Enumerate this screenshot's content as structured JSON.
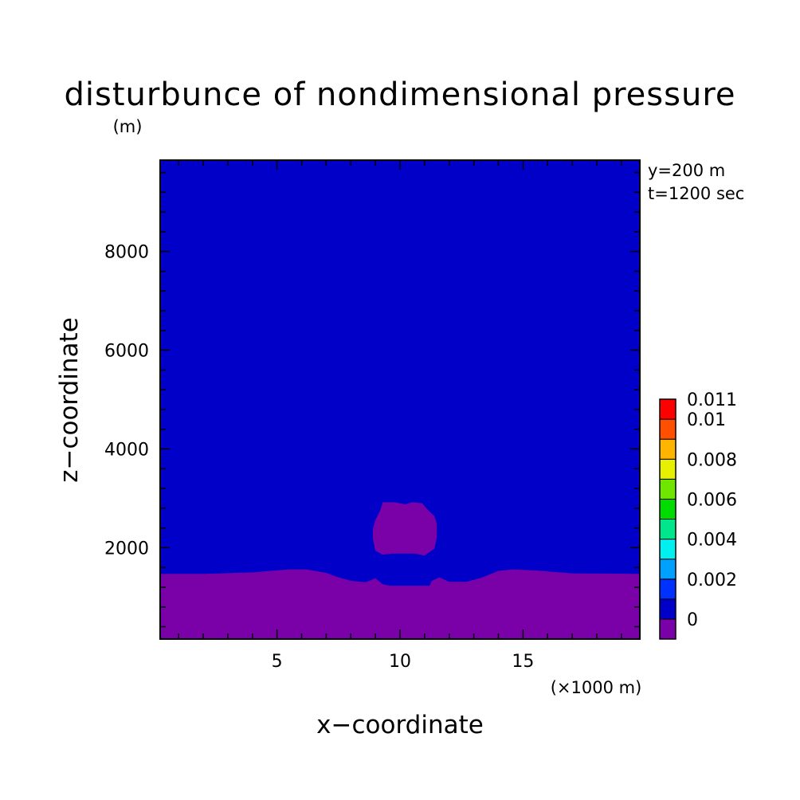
{
  "chart_data": {
    "type": "heatmap",
    "title": "disturbunce of nondimensional pressure",
    "y_unit": "(m)",
    "x_unit": "(×1000 m)",
    "xlabel": "x−coordinate",
    "ylabel": "z−coordinate",
    "annotations": [
      "y=200 m",
      "t=1200 sec"
    ],
    "xlim": [
      0.25,
      19.75
    ],
    "ylim": [
      150,
      9850
    ],
    "x_ticks": [
      5,
      10,
      15
    ],
    "y_ticks": [
      2000,
      4000,
      6000,
      8000
    ],
    "background_level_color": "#0000c8",
    "colorbar": {
      "levels": [
        {
          "lower": -0.001,
          "upper": 0.0,
          "color": "#7a00a8"
        },
        {
          "lower": 0.0,
          "upper": 0.001,
          "color": "#0000c8"
        },
        {
          "lower": 0.001,
          "upper": 0.002,
          "color": "#0032ff"
        },
        {
          "lower": 0.002,
          "upper": 0.003,
          "color": "#00a0ff"
        },
        {
          "lower": 0.003,
          "upper": 0.004,
          "color": "#00f0f0"
        },
        {
          "lower": 0.004,
          "upper": 0.005,
          "color": "#00e68c"
        },
        {
          "lower": 0.005,
          "upper": 0.006,
          "color": "#00dc00"
        },
        {
          "lower": 0.006,
          "upper": 0.007,
          "color": "#6ee600"
        },
        {
          "lower": 0.007,
          "upper": 0.008,
          "color": "#e6f000"
        },
        {
          "lower": 0.008,
          "upper": 0.009,
          "color": "#ffb400"
        },
        {
          "lower": 0.009,
          "upper": 0.01,
          "color": "#ff5000"
        },
        {
          "lower": 0.01,
          "upper": 0.011,
          "color": "#ff0000"
        }
      ],
      "labels": [
        {
          "value": 0.011,
          "text": "0.011"
        },
        {
          "value": 0.01,
          "text": "0.01"
        },
        {
          "value": 0.008,
          "text": "0.008"
        },
        {
          "value": 0.006,
          "text": "0.006"
        },
        {
          "value": 0.004,
          "text": "0.004"
        },
        {
          "value": 0.002,
          "text": "0.002"
        },
        {
          "value": 0.0,
          "text": "0"
        }
      ]
    },
    "regions": [
      {
        "name": "negative-disturbance-lower-layer",
        "color": "#7a00a8",
        "polygon": [
          [
            0.25,
            150
          ],
          [
            0.25,
            1470
          ],
          [
            2.0,
            1470
          ],
          [
            4.0,
            1500
          ],
          [
            5.5,
            1560
          ],
          [
            6.2,
            1560
          ],
          [
            7.0,
            1490
          ],
          [
            7.5,
            1400
          ],
          [
            8.0,
            1330
          ],
          [
            8.6,
            1300
          ],
          [
            9.0,
            1380
          ],
          [
            9.3,
            1260
          ],
          [
            9.6,
            1230
          ],
          [
            10.5,
            1230
          ],
          [
            11.2,
            1230
          ],
          [
            11.3,
            1330
          ],
          [
            11.6,
            1400
          ],
          [
            12.0,
            1310
          ],
          [
            12.7,
            1310
          ],
          [
            13.3,
            1390
          ],
          [
            14.0,
            1530
          ],
          [
            14.6,
            1560
          ],
          [
            15.5,
            1540
          ],
          [
            17.0,
            1480
          ],
          [
            19.75,
            1470
          ],
          [
            19.75,
            150
          ]
        ]
      },
      {
        "name": "negative-disturbance-bubble",
        "color": "#7a00a8",
        "polygon": [
          [
            9.3,
            2920
          ],
          [
            9.8,
            2920
          ],
          [
            10.2,
            2880
          ],
          [
            10.5,
            2920
          ],
          [
            10.9,
            2900
          ],
          [
            11.1,
            2780
          ],
          [
            11.4,
            2640
          ],
          [
            11.5,
            2480
          ],
          [
            11.5,
            2220
          ],
          [
            11.4,
            1980
          ],
          [
            11.0,
            1840
          ],
          [
            10.6,
            1880
          ],
          [
            10.1,
            1880
          ],
          [
            9.7,
            1880
          ],
          [
            9.3,
            1860
          ],
          [
            9.0,
            1940
          ],
          [
            8.9,
            2180
          ],
          [
            8.9,
            2380
          ],
          [
            9.0,
            2560
          ],
          [
            9.2,
            2760
          ]
        ]
      }
    ]
  }
}
